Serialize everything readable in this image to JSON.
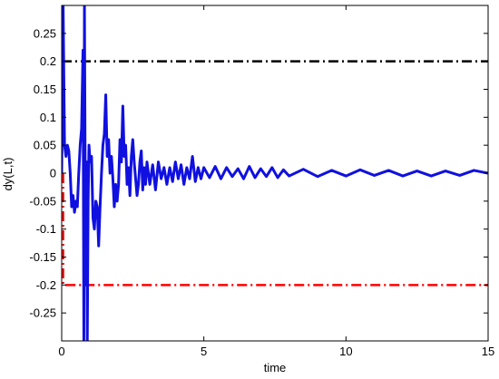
{
  "chart_data": {
    "type": "line",
    "title": "",
    "xlabel": "time",
    "ylabel": "dy(L,t)",
    "xlim": [
      0,
      15
    ],
    "ylim": [
      -0.3,
      0.3
    ],
    "x_ticks": [
      0,
      5,
      10,
      15
    ],
    "x_tick_labels": [
      "0",
      "5",
      "10",
      "15"
    ],
    "y_ticks": [
      -0.25,
      -0.2,
      -0.15,
      -0.1,
      -0.05,
      0,
      0.05,
      0.1,
      0.15,
      0.2,
      0.25
    ],
    "y_tick_labels": [
      "-0.25",
      "-0.2",
      "-0.15",
      "-0.1",
      "-0.05",
      "0",
      "0.05",
      "0.1",
      "0.15",
      "0.2",
      "0.25"
    ],
    "grid": false,
    "legend": "none",
    "series": [
      {
        "style": "solid",
        "color": "#1010e0",
        "x": [
          0.0,
          0.05,
          0.1,
          0.15,
          0.2,
          0.25,
          0.3,
          0.35,
          0.4,
          0.45,
          0.5,
          0.55,
          0.6,
          0.65,
          0.7,
          0.75,
          0.78,
          0.8,
          0.83,
          0.85,
          0.88,
          0.9,
          0.93,
          0.96,
          1.0,
          1.05,
          1.1,
          1.15,
          1.2,
          1.25,
          1.3,
          1.35,
          1.4,
          1.45,
          1.5,
          1.55,
          1.6,
          1.65,
          1.7,
          1.75,
          1.8,
          1.85,
          1.9,
          1.95,
          2.0,
          2.05,
          2.1,
          2.15,
          2.2,
          2.25,
          2.3,
          2.35,
          2.4,
          2.45,
          2.5,
          2.55,
          2.6,
          2.65,
          2.7,
          2.75,
          2.8,
          2.85,
          2.9,
          2.95,
          3.0,
          3.1,
          3.2,
          3.3,
          3.4,
          3.5,
          3.6,
          3.7,
          3.8,
          3.9,
          4.0,
          4.1,
          4.2,
          4.3,
          4.4,
          4.5,
          4.6,
          4.7,
          4.8,
          4.9,
          5.0,
          5.2,
          5.4,
          5.6,
          5.8,
          6.0,
          6.2,
          6.4,
          6.6,
          6.8,
          7.0,
          7.2,
          7.4,
          7.6,
          7.8,
          8.0,
          8.5,
          9.0,
          9.5,
          10.0,
          10.5,
          11.0,
          11.5,
          12.0,
          12.5,
          13.0,
          13.5,
          14.0,
          14.5,
          15.0
        ],
        "y": [
          0.0,
          0.3,
          0.05,
          0.03,
          0.05,
          0.04,
          0.0,
          -0.06,
          -0.04,
          -0.07,
          -0.05,
          -0.06,
          0.0,
          0.05,
          0.08,
          0.22,
          -0.3,
          0.3,
          -0.05,
          -0.2,
          0.02,
          -0.3,
          -0.05,
          0.05,
          0.02,
          0.03,
          -0.08,
          -0.1,
          -0.05,
          -0.06,
          -0.13,
          -0.06,
          0.0,
          0.05,
          0.07,
          0.14,
          0.03,
          0.06,
          0.0,
          0.03,
          -0.01,
          -0.06,
          -0.02,
          -0.05,
          -0.02,
          0.06,
          0.02,
          0.12,
          0.03,
          0.05,
          -0.02,
          0.01,
          -0.04,
          0.03,
          0.06,
          0.02,
          -0.01,
          -0.04,
          -0.02,
          0.02,
          0.04,
          -0.03,
          0.01,
          -0.02,
          0.02,
          -0.02,
          0.015,
          -0.03,
          0.02,
          -0.01,
          0.01,
          -0.02,
          0.01,
          -0.015,
          0.02,
          -0.01,
          0.015,
          -0.02,
          0.01,
          -0.01,
          0.03,
          -0.015,
          0.01,
          -0.01,
          0.01,
          -0.008,
          0.012,
          -0.01,
          0.01,
          -0.006,
          0.008,
          -0.01,
          0.012,
          -0.008,
          0.008,
          -0.006,
          0.01,
          -0.008,
          0.006,
          -0.005,
          0.007,
          -0.006,
          0.005,
          -0.005,
          0.006,
          -0.004,
          0.005,
          -0.005,
          0.004,
          -0.005,
          0.004,
          -0.004,
          0.005,
          0.0
        ]
      },
      {
        "style": "dash-dot",
        "color": "#000000",
        "x": [
          0,
          15
        ],
        "y": [
          0.2,
          0.2
        ]
      },
      {
        "style": "dash-dot",
        "color": "#ff0000",
        "x": [
          0.05,
          0.05,
          15
        ],
        "y": [
          0.0,
          -0.2,
          -0.2
        ]
      }
    ]
  }
}
